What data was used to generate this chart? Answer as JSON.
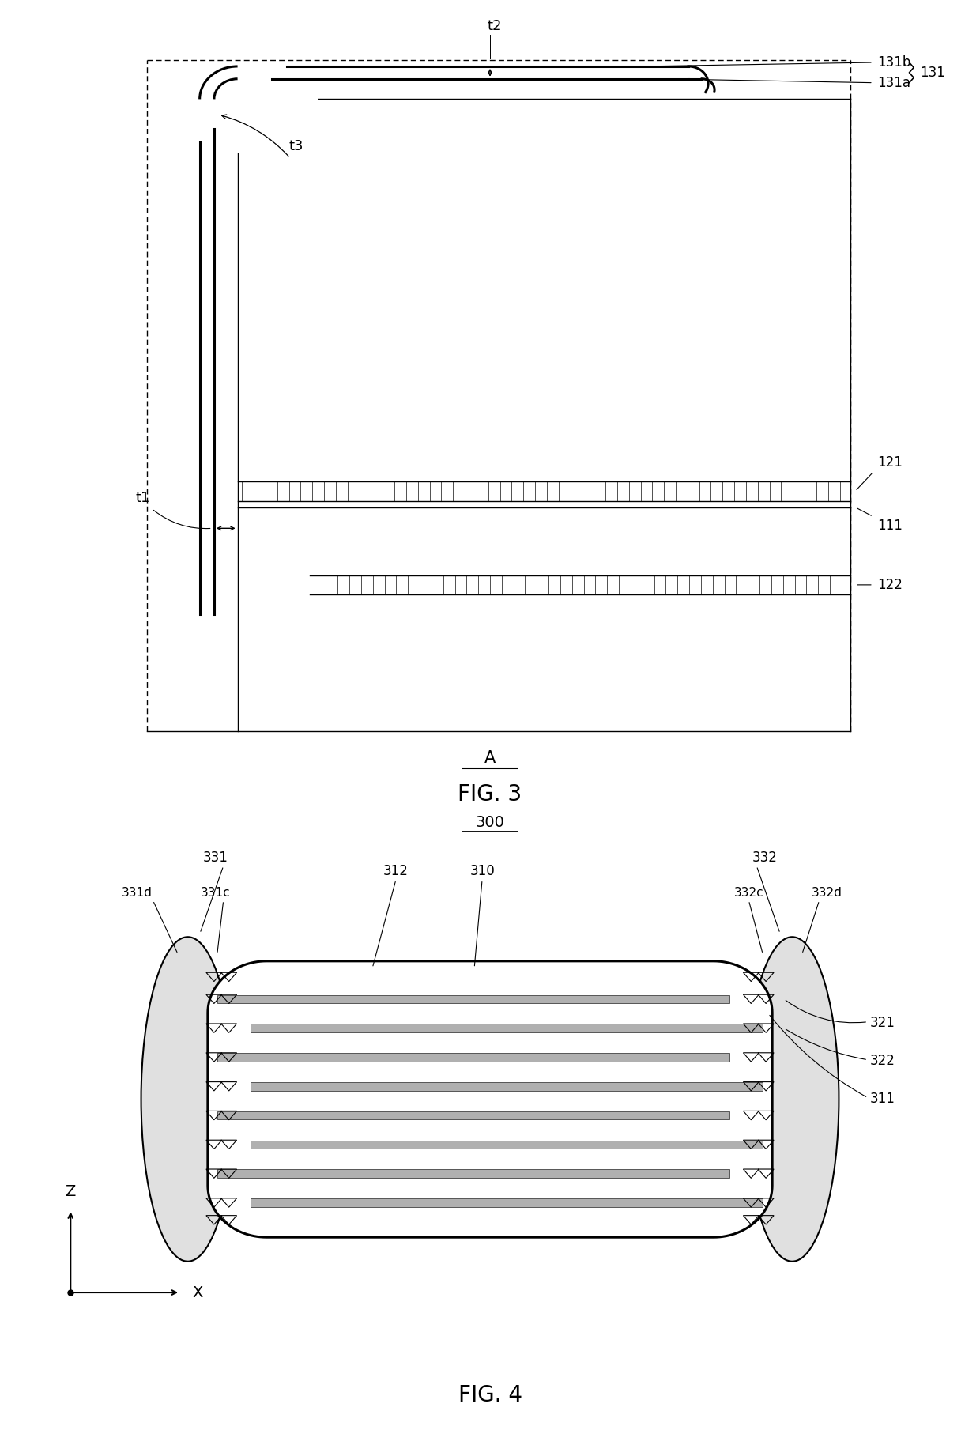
{
  "fig3_title": "FIG. 3",
  "fig4_title": "FIG. 4",
  "label_A": "A",
  "label_300": "300",
  "bg_color": "#ffffff",
  "line_color": "#000000"
}
